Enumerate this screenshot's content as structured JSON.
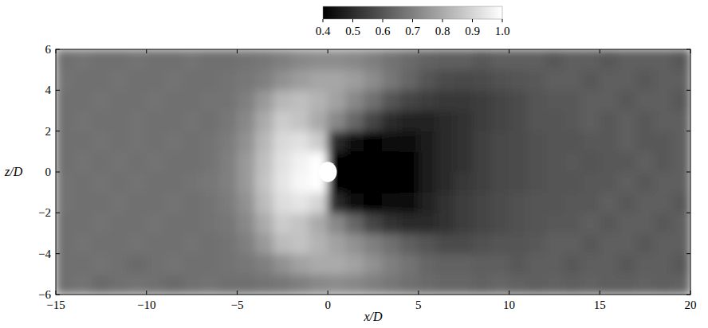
{
  "chart_data": {
    "type": "heatmap",
    "x_label": "x/D",
    "y_label": "z/D",
    "xlim": [
      -15,
      20
    ],
    "ylim": [
      -6,
      6
    ],
    "xticks": [
      {
        "value": -15,
        "label": "−15"
      },
      {
        "value": -10,
        "label": "−10"
      },
      {
        "value": -5,
        "label": "−5"
      },
      0,
      5,
      10,
      15,
      20
    ],
    "yticks": [
      {
        "value": -6,
        "label": "−6"
      },
      {
        "value": -4,
        "label": "−4"
      },
      {
        "value": -2,
        "label": "−2"
      },
      0,
      2,
      4,
      6
    ],
    "tick_labels": true,
    "grid": false,
    "xbins": [
      -15,
      -14,
      -13,
      -12,
      -11,
      -10,
      -9,
      -8,
      -7,
      -6,
      -5,
      -4,
      -3,
      -2,
      -1,
      0,
      1,
      2,
      3,
      4,
      5,
      6,
      7,
      8,
      9,
      10,
      11,
      12,
      13,
      14,
      15,
      16,
      17,
      18,
      19,
      20
    ],
    "ybins": [
      -6,
      -5,
      -4,
      -3,
      -2,
      -1,
      0,
      1,
      2,
      3,
      4,
      5,
      6
    ],
    "cells": [
      [
        0.66,
        0.67,
        0.65,
        0.66,
        0.67,
        0.66,
        0.65,
        0.66,
        0.67,
        0.66,
        0.66,
        0.67,
        0.68,
        0.7,
        0.72,
        0.73,
        0.72,
        0.7,
        0.68,
        0.66,
        0.65,
        0.64,
        0.64,
        0.63,
        0.64,
        0.63,
        0.62,
        0.63,
        0.62,
        0.63,
        0.62,
        0.62,
        0.63,
        0.62,
        0.63
      ],
      [
        0.66,
        0.66,
        0.67,
        0.66,
        0.65,
        0.66,
        0.67,
        0.66,
        0.66,
        0.67,
        0.68,
        0.7,
        0.74,
        0.78,
        0.8,
        0.8,
        0.78,
        0.74,
        0.7,
        0.67,
        0.64,
        0.63,
        0.63,
        0.62,
        0.62,
        0.61,
        0.62,
        0.62,
        0.61,
        0.62,
        0.62,
        0.61,
        0.62,
        0.62,
        0.61
      ],
      [
        0.66,
        0.67,
        0.66,
        0.66,
        0.67,
        0.66,
        0.66,
        0.67,
        0.66,
        0.67,
        0.7,
        0.76,
        0.84,
        0.86,
        0.82,
        0.78,
        0.74,
        0.7,
        0.66,
        0.62,
        0.6,
        0.58,
        0.58,
        0.59,
        0.6,
        0.6,
        0.61,
        0.62,
        0.62,
        0.61,
        0.62,
        0.62,
        0.61,
        0.62,
        0.62
      ],
      [
        0.66,
        0.66,
        0.67,
        0.66,
        0.66,
        0.67,
        0.66,
        0.66,
        0.67,
        0.68,
        0.72,
        0.8,
        0.88,
        0.86,
        0.8,
        0.72,
        0.64,
        0.56,
        0.52,
        0.5,
        0.5,
        0.52,
        0.54,
        0.56,
        0.58,
        0.59,
        0.6,
        0.61,
        0.61,
        0.62,
        0.61,
        0.62,
        0.62,
        0.61,
        0.62
      ],
      [
        0.67,
        0.66,
        0.66,
        0.67,
        0.66,
        0.66,
        0.67,
        0.66,
        0.67,
        0.69,
        0.74,
        0.84,
        0.92,
        0.94,
        0.9,
        0.5,
        0.42,
        0.41,
        0.42,
        0.44,
        0.48,
        0.52,
        0.54,
        0.56,
        0.58,
        0.59,
        0.6,
        0.6,
        0.61,
        0.61,
        0.62,
        0.61,
        0.62,
        0.62,
        0.61
      ],
      [
        0.67,
        0.66,
        0.67,
        0.66,
        0.67,
        0.66,
        0.66,
        0.67,
        0.68,
        0.7,
        0.76,
        0.86,
        0.94,
        0.98,
        1.0,
        0.4,
        0.38,
        0.38,
        0.39,
        0.41,
        0.46,
        0.5,
        0.53,
        0.55,
        0.57,
        0.58,
        0.59,
        0.6,
        0.6,
        0.61,
        0.61,
        0.62,
        0.61,
        0.62,
        0.62
      ],
      [
        0.66,
        0.67,
        0.66,
        0.67,
        0.66,
        0.67,
        0.66,
        0.66,
        0.67,
        0.7,
        0.76,
        0.85,
        0.93,
        0.97,
        1.0,
        0.4,
        0.38,
        0.38,
        0.39,
        0.41,
        0.46,
        0.5,
        0.52,
        0.55,
        0.57,
        0.58,
        0.59,
        0.6,
        0.61,
        0.6,
        0.61,
        0.61,
        0.62,
        0.61,
        0.62
      ],
      [
        0.66,
        0.66,
        0.67,
        0.66,
        0.67,
        0.66,
        0.67,
        0.66,
        0.67,
        0.69,
        0.74,
        0.83,
        0.91,
        0.93,
        0.88,
        0.5,
        0.42,
        0.41,
        0.42,
        0.44,
        0.47,
        0.5,
        0.52,
        0.55,
        0.57,
        0.58,
        0.59,
        0.6,
        0.6,
        0.61,
        0.61,
        0.62,
        0.61,
        0.61,
        0.62
      ],
      [
        0.66,
        0.67,
        0.66,
        0.66,
        0.67,
        0.66,
        0.66,
        0.67,
        0.66,
        0.68,
        0.72,
        0.8,
        0.88,
        0.86,
        0.8,
        0.72,
        0.64,
        0.56,
        0.5,
        0.48,
        0.48,
        0.5,
        0.52,
        0.54,
        0.56,
        0.58,
        0.6,
        0.6,
        0.61,
        0.62,
        0.61,
        0.62,
        0.61,
        0.62,
        0.62
      ],
      [
        0.66,
        0.66,
        0.67,
        0.66,
        0.66,
        0.67,
        0.66,
        0.66,
        0.67,
        0.67,
        0.7,
        0.76,
        0.83,
        0.85,
        0.82,
        0.78,
        0.72,
        0.66,
        0.6,
        0.56,
        0.54,
        0.53,
        0.53,
        0.54,
        0.56,
        0.58,
        0.6,
        0.61,
        0.61,
        0.62,
        0.62,
        0.61,
        0.62,
        0.62,
        0.61
      ],
      [
        0.67,
        0.66,
        0.66,
        0.67,
        0.66,
        0.66,
        0.67,
        0.66,
        0.66,
        0.67,
        0.68,
        0.7,
        0.74,
        0.77,
        0.79,
        0.79,
        0.77,
        0.73,
        0.68,
        0.64,
        0.6,
        0.58,
        0.57,
        0.58,
        0.59,
        0.6,
        0.61,
        0.62,
        0.62,
        0.61,
        0.62,
        0.62,
        0.61,
        0.62,
        0.62
      ],
      [
        0.66,
        0.67,
        0.66,
        0.66,
        0.67,
        0.66,
        0.66,
        0.67,
        0.66,
        0.66,
        0.67,
        0.68,
        0.7,
        0.72,
        0.73,
        0.73,
        0.72,
        0.7,
        0.67,
        0.65,
        0.63,
        0.62,
        0.62,
        0.61,
        0.62,
        0.62,
        0.62,
        0.61,
        0.62,
        0.62,
        0.61,
        0.62,
        0.62,
        0.62,
        0.61
      ]
    ],
    "colorbar": {
      "range": [
        0.4,
        1.0
      ],
      "ticks": [
        0.4,
        0.5,
        0.6,
        0.7,
        0.8,
        0.9,
        {
          "value": 1,
          "label": "1.0"
        }
      ]
    },
    "cylinder": {
      "x": 0,
      "z": 0,
      "d": 1
    }
  }
}
